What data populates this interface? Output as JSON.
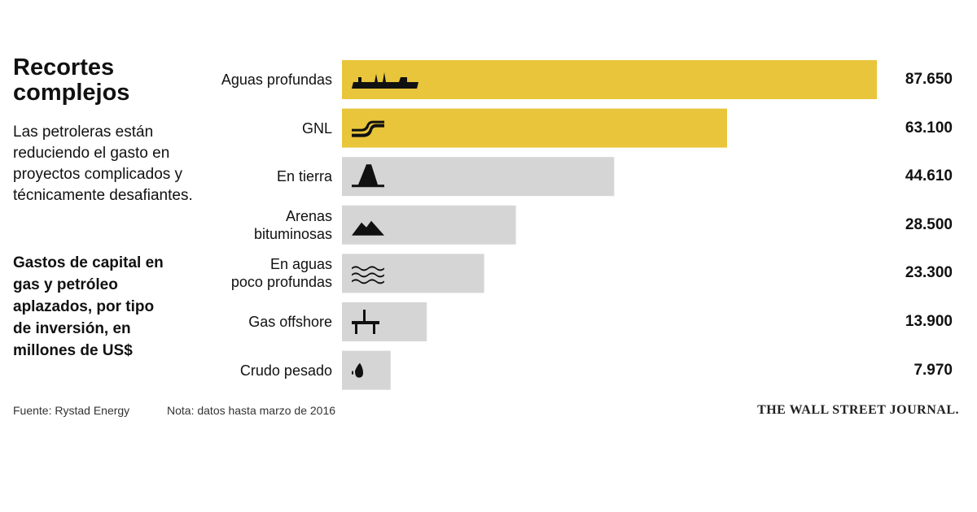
{
  "title": "Recortes complejos",
  "subtitle": "Las petroleras están reduciendo el gasto en proyectos complicados y técnicamente desafiantes.",
  "chart_data": {
    "type": "bar",
    "orientation": "horizontal",
    "title": "Gastos de capital en gas y petróleo aplazados, por tipo de inversión, en millones de US$",
    "categories": [
      "Aguas profundas",
      "GNL",
      "En tierra",
      "Arenas\nbituminosas",
      "En aguas\npoco profundas",
      "Gas offshore",
      "Crudo pesado"
    ],
    "values": [
      87650,
      63100,
      44610,
      28500,
      23300,
      13900,
      7970
    ],
    "value_labels": [
      "87.650",
      "63.100",
      "44.610",
      "28.500",
      "23.300",
      "13.900",
      "7.970"
    ],
    "colors": [
      "#e8c53a",
      "#e8c53a",
      "#d5d5d5",
      "#d5d5d5",
      "#d5d5d5",
      "#d5d5d5",
      "#d5d5d5"
    ]
  },
  "source": "Fuente: Rystad Energy",
  "note": "Nota: datos hasta marzo de 2016",
  "brand": "THE WALL STREET JOURNAL."
}
